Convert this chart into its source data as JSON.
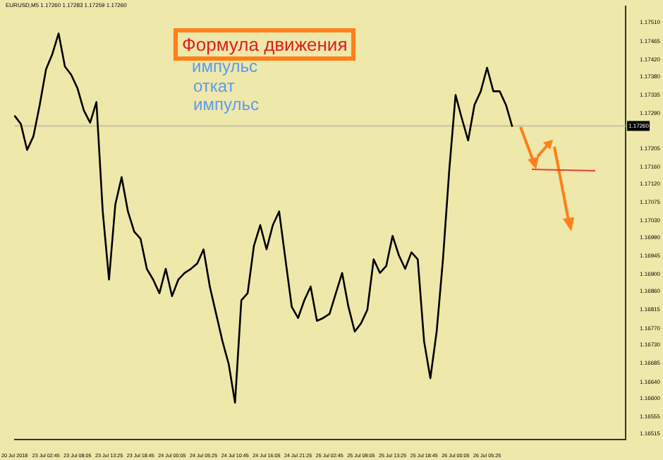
{
  "chart_data": {
    "type": "line",
    "title": "Формула движения",
    "subtitle": "EURUSD,M5 1.17260 1.17283 1.17259 1.17260",
    "annotations": [
      "импульс",
      "откат",
      "импульс"
    ],
    "categories": [
      "20 Jul 2018",
      null,
      null,
      null,
      null,
      "23 Jul 02:45",
      null,
      null,
      null,
      null,
      "23 Jul 08:05",
      null,
      null,
      null,
      null,
      "23 Jul 13:25",
      null,
      null,
      null,
      null,
      "23 Jul 18:45",
      null,
      null,
      null,
      null,
      "24 Jul 00:05",
      null,
      null,
      null,
      null,
      "24 Jul 05:25",
      null,
      null,
      null,
      null,
      "24 Jul 10:45",
      null,
      null,
      null,
      null,
      "24 Jul 16:05",
      null,
      null,
      null,
      null,
      "24 Jul 21:25",
      null,
      null,
      null,
      null,
      "25 Jul 02:45",
      null,
      null,
      null,
      null,
      "25 Jul 08:05",
      null,
      null,
      null,
      null,
      "25 Jul 13:25",
      null,
      null,
      null,
      null,
      "25 Jul 18:45",
      null,
      null,
      null,
      null,
      "26 Jul 00:05",
      null,
      null,
      null,
      null,
      "26 Jul 05:25",
      null,
      null,
      null,
      null,
      null,
      null,
      null,
      null,
      null,
      null,
      null,
      null,
      null,
      null,
      null,
      null,
      null,
      null,
      null,
      null,
      null,
      null
    ],
    "series": [
      {
        "color": "#000000",
        "values": [
          1.17285,
          1.17265,
          1.17202,
          1.17235,
          1.17311,
          1.17397,
          1.17434,
          1.17484,
          1.17404,
          1.17384,
          1.17351,
          1.17298,
          1.17268,
          1.17318,
          1.17053,
          1.16888,
          1.1707,
          1.17136,
          1.17053,
          1.17004,
          1.16987,
          1.16914,
          1.16888,
          1.16855,
          1.16914,
          1.16848,
          1.16888,
          1.16904,
          1.16914,
          1.16927,
          1.16961,
          1.16871,
          1.16805,
          1.16739,
          1.16683,
          1.1659,
          1.16838,
          1.16855,
          1.1697,
          1.1702,
          1.16961,
          1.1702,
          1.17053,
          1.16937,
          1.16822,
          1.16795,
          1.16838,
          1.16871,
          1.16788,
          1.16795,
          1.16805,
          1.16855,
          1.16904,
          1.16822,
          1.16762,
          1.16782,
          1.16815,
          1.16937,
          1.16904,
          1.16921,
          1.16994,
          1.16947,
          1.16914,
          1.16954,
          1.16937,
          1.16739,
          1.16649,
          1.16762,
          1.16937,
          1.17153,
          1.17335,
          1.17278,
          1.17225,
          1.17311,
          1.17344,
          1.17401,
          1.17344,
          1.17344,
          1.17311,
          1.17258,
          null,
          null,
          null,
          null,
          null,
          null,
          null,
          null,
          null,
          null,
          null,
          null,
          null,
          null,
          null,
          null,
          null,
          null
        ]
      }
    ],
    "ylim": [
      1.165,
      1.1755
    ],
    "yticks": [
      {
        "value": 1.1751,
        "label": "1.17510"
      },
      {
        "value": 1.17465,
        "label": "1.17465"
      },
      {
        "value": 1.1742,
        "label": "1.17420"
      },
      {
        "value": 1.1738,
        "label": "1.17380"
      },
      {
        "value": 1.17335,
        "label": "1.17335"
      },
      {
        "value": 1.1729,
        "label": "1.17290"
      },
      {
        "value": 1.17205,
        "label": "1.17205"
      },
      {
        "value": 1.1716,
        "label": "1.17160"
      },
      {
        "value": 1.1712,
        "label": "1.17120"
      },
      {
        "value": 1.17075,
        "label": "1.17075"
      },
      {
        "value": 1.1703,
        "label": "1.17030"
      },
      {
        "value": 1.1699,
        "label": "1.16990"
      },
      {
        "value": 1.16945,
        "label": "1.16945"
      },
      {
        "value": 1.169,
        "label": "1.16900"
      },
      {
        "value": 1.1686,
        "label": "1.16860"
      },
      {
        "value": 1.16815,
        "label": "1.16815"
      },
      {
        "value": 1.1677,
        "label": "1.16770"
      },
      {
        "value": 1.1673,
        "label": "1.16730"
      },
      {
        "value": 1.16685,
        "label": "1.16685"
      },
      {
        "value": 1.1664,
        "label": "1.16640"
      },
      {
        "value": 1.166,
        "label": "1.16600"
      },
      {
        "value": 1.16555,
        "label": "1.16555"
      },
      {
        "value": 1.16515,
        "label": "1.16515"
      }
    ],
    "ref_lines": [
      {
        "axis": "y",
        "value": 1.1726,
        "label": "1.17260",
        "color": "#c8c2a0"
      }
    ]
  }
}
